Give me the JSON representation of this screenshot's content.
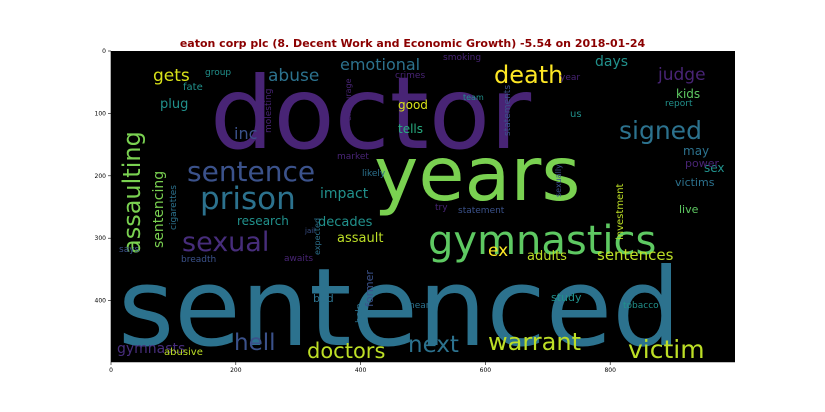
{
  "title": "eaton corp plc (8. Decent Work and Economic Growth) -5.54 on 2018-01-24",
  "axes": {
    "x_ticks": [
      "0",
      "200",
      "400",
      "600",
      "800"
    ],
    "y_ticks": [
      "0",
      "100",
      "200",
      "300",
      "400"
    ]
  },
  "colors": {
    "title": "#8b0000",
    "background": "#000000",
    "purple": "#482475",
    "indigo": "#3b528b",
    "blue": "#2c728e",
    "teal": "#21918c",
    "green": "#27ad81",
    "lime": "#5ec962",
    "yellowgreen": "#addc30",
    "yellow": "#fde725"
  },
  "words": [
    {
      "text": "doctor",
      "color": "#482475"
    },
    {
      "text": "sentenced",
      "color": "#2c728e"
    },
    {
      "text": "years",
      "color": "#7ad151"
    },
    {
      "text": "gymnastics",
      "color": "#5ec962"
    },
    {
      "text": "prison",
      "color": "#2c728e"
    },
    {
      "text": "sentence",
      "color": "#3b528b"
    },
    {
      "text": "assaulting",
      "color": "#7ad151"
    },
    {
      "text": "death",
      "color": "#fde725"
    },
    {
      "text": "signed",
      "color": "#2c728e"
    },
    {
      "text": "victim",
      "color": "#bddf26"
    },
    {
      "text": "warrant",
      "color": "#bddf26"
    },
    {
      "text": "sexual",
      "color": "#472d7b"
    },
    {
      "text": "hell",
      "color": "#3b528b"
    },
    {
      "text": "next",
      "color": "#2c728e"
    },
    {
      "text": "doctors",
      "color": "#bddf26"
    },
    {
      "text": "gymnasts",
      "color": "#472d7b"
    },
    {
      "text": "sentencing",
      "color": "#7ad151"
    },
    {
      "text": "abuse",
      "color": "#2c728e"
    },
    {
      "text": "emotional",
      "color": "#2c728e"
    },
    {
      "text": "gets",
      "color": "#d8e219"
    },
    {
      "text": "judge",
      "color": "#482475"
    },
    {
      "text": "plug",
      "color": "#21918c"
    },
    {
      "text": "days",
      "color": "#21918c"
    },
    {
      "text": "kids",
      "color": "#5ec962"
    },
    {
      "text": "impact",
      "color": "#21918c"
    },
    {
      "text": "sentences",
      "color": "#bddf26"
    },
    {
      "text": "adults",
      "color": "#bddf26"
    },
    {
      "text": "ex",
      "color": "#fde725"
    },
    {
      "text": "sex",
      "color": "#21918c"
    },
    {
      "text": "may",
      "color": "#2c728e"
    },
    {
      "text": "inc",
      "color": "#3b528b"
    },
    {
      "text": "good",
      "color": "#d8e219"
    },
    {
      "text": "tells",
      "color": "#27ad81"
    },
    {
      "text": "decades",
      "color": "#21918c"
    },
    {
      "text": "assault",
      "color": "#bddf26"
    },
    {
      "text": "research",
      "color": "#21918c"
    },
    {
      "text": "bad",
      "color": "#2c728e"
    },
    {
      "text": "study",
      "color": "#21918c"
    },
    {
      "text": "former",
      "color": "#3b528b"
    },
    {
      "text": "fate",
      "color": "#21918c"
    },
    {
      "text": "group",
      "color": "#21918c"
    },
    {
      "text": "crimes",
      "color": "#482475"
    },
    {
      "text": "smoking",
      "color": "#482475"
    },
    {
      "text": "year",
      "color": "#482475"
    },
    {
      "text": "team",
      "color": "#21918c"
    },
    {
      "text": "report",
      "color": "#21918c"
    },
    {
      "text": "us",
      "color": "#21918c"
    },
    {
      "text": "power",
      "color": "#482475"
    },
    {
      "text": "victims",
      "color": "#2c728e"
    },
    {
      "text": "live",
      "color": "#5ec962"
    },
    {
      "text": "investment",
      "color": "#bddf26"
    },
    {
      "text": "statement",
      "color": "#3b528b"
    },
    {
      "text": "statements",
      "color": "#3b528b"
    },
    {
      "text": "sexually",
      "color": "#3b528b"
    },
    {
      "text": "market",
      "color": "#482475"
    },
    {
      "text": "likely",
      "color": "#2c728e"
    },
    {
      "text": "try",
      "color": "#482475"
    },
    {
      "text": "jail",
      "color": "#3b528b"
    },
    {
      "text": "awaits",
      "color": "#482475"
    },
    {
      "text": "breadth",
      "color": "#3b528b"
    },
    {
      "text": "says",
      "color": "#3b528b"
    },
    {
      "text": "expected",
      "color": "#2c728e"
    },
    {
      "text": "help",
      "color": "#2c728e"
    },
    {
      "text": "nearly",
      "color": "#2c728e"
    },
    {
      "text": "tobacco",
      "color": "#21918c"
    },
    {
      "text": "abusive",
      "color": "#bddf26"
    },
    {
      "text": "cigarettes",
      "color": "#2c728e"
    },
    {
      "text": "molesting",
      "color": "#482475"
    },
    {
      "text": "encourage",
      "color": "#482475"
    }
  ]
}
